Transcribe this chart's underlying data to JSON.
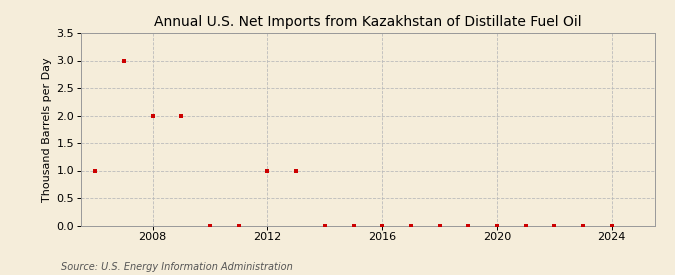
{
  "title": "Annual U.S. Net Imports from Kazakhstan of Distillate Fuel Oil",
  "ylabel": "Thousand Barrels per Day",
  "source": "Source: U.S. Energy Information Administration",
  "background_color": "#f5edda",
  "plot_bg_color": "#f5edda",
  "years": [
    2006,
    2007,
    2008,
    2009,
    2010,
    2011,
    2012,
    2013,
    2014,
    2015,
    2016,
    2017,
    2018,
    2019,
    2020,
    2021,
    2022,
    2023,
    2024
  ],
  "values": [
    1.0,
    3.0,
    2.0,
    2.0,
    0.0,
    0.0,
    1.0,
    1.0,
    0.0,
    0.0,
    0.0,
    0.0,
    0.0,
    0.0,
    0.0,
    0.0,
    0.0,
    0.0,
    0.0
  ],
  "marker_color": "#cc0000",
  "marker_size": 3.5,
  "ylim": [
    0,
    3.5
  ],
  "yticks": [
    0.0,
    0.5,
    1.0,
    1.5,
    2.0,
    2.5,
    3.0,
    3.5
  ],
  "xlim_start": 2005.5,
  "xlim_end": 2025.5,
  "xticks": [
    2008,
    2012,
    2016,
    2020,
    2024
  ],
  "title_fontsize": 10,
  "ylabel_fontsize": 8,
  "tick_fontsize": 8,
  "source_fontsize": 7,
  "grid_color": "#bbbbbb",
  "spine_color": "#999999"
}
